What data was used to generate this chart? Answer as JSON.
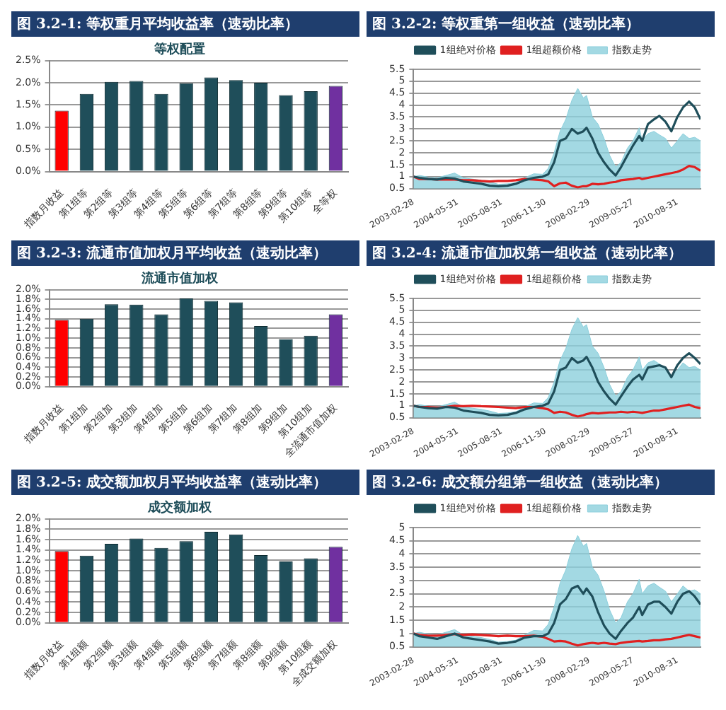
{
  "chart_data": [
    {
      "type": "bar",
      "title": "图 3.2-1: 等权重月平均收益率（速动比率）",
      "subtitle": "等权配置",
      "categories": [
        "指数月收益",
        "第1组等",
        "第2组等",
        "第3组等",
        "第4组等",
        "第5组等",
        "第6组等",
        "第7组等",
        "第8组等",
        "第9组等",
        "第10组等",
        "全等权"
      ],
      "values": [
        1.37,
        1.75,
        2.02,
        2.04,
        1.75,
        1.99,
        2.12,
        2.06,
        2.0,
        1.72,
        1.81,
        1.93
      ],
      "colors": [
        "#ff0000",
        "#1f4e5a",
        "#1f4e5a",
        "#1f4e5a",
        "#1f4e5a",
        "#1f4e5a",
        "#1f4e5a",
        "#1f4e5a",
        "#1f4e5a",
        "#1f4e5a",
        "#1f4e5a",
        "#7030a0"
      ],
      "ylim": [
        0,
        2.5
      ],
      "yticks": [
        {
          "value": 0,
          "label": "0.0%"
        },
        {
          "value": 0.5,
          "label": "0.5%"
        },
        {
          "value": 1,
          "label": "1.0%"
        },
        {
          "value": 1.5,
          "label": "1.5%"
        },
        {
          "value": 2,
          "label": "2.0%"
        },
        {
          "value": 2.5,
          "label": "2.5%"
        }
      ],
      "grid": "y",
      "legend": false
    },
    {
      "type": "line",
      "title": "图 3.2-2: 等权重第一组收益（速动比率）",
      "x": [
        "2003-02-28",
        "2003-04-30",
        "2003-07-31",
        "2003-10-31",
        "2004-01-30",
        "2004-04-30",
        "2004-07-30",
        "2004-10-29",
        "2005-01-31",
        "2005-04-29",
        "2005-07-29",
        "2005-10-31",
        "2006-01-26",
        "2006-04-28",
        "2006-07-31",
        "2006-10-31",
        "2006-12-29",
        "2007-02-28",
        "2007-04-30",
        "2007-06-29",
        "2007-08-31",
        "2007-10-31",
        "2007-12-28",
        "2008-01-31",
        "2008-03-31",
        "2008-05-30",
        "2008-07-31",
        "2008-09-26",
        "2008-11-28",
        "2009-01-23",
        "2009-03-31",
        "2009-05-27",
        "2009-07-31",
        "2009-08-31",
        "2009-10-30",
        "2009-12-31",
        "2010-02-26",
        "2010-04-30",
        "2010-06-30",
        "2010-08-31",
        "2010-10-29",
        "2010-12-31",
        "2011-02-28",
        "2011-04-29"
      ],
      "series": [
        {
          "name": "指数走势",
          "type": "area",
          "color": "#8ccfdc",
          "values": [
            1.0,
            1.05,
            0.98,
            0.95,
            1.05,
            1.15,
            0.95,
            0.9,
            0.85,
            0.78,
            0.68,
            0.7,
            0.75,
            0.95,
            1.12,
            1.1,
            1.35,
            2.0,
            2.9,
            3.4,
            4.2,
            4.7,
            4.3,
            4.4,
            3.5,
            3.2,
            2.6,
            1.9,
            1.4,
            1.6,
            2.2,
            2.5,
            3.05,
            2.5,
            2.8,
            2.9,
            2.75,
            2.6,
            2.2,
            2.5,
            2.8,
            2.6,
            2.65,
            2.5
          ]
        },
        {
          "name": "1组绝对价格",
          "type": "line",
          "color": "#1f4e5a",
          "values": [
            1.0,
            0.95,
            0.9,
            0.88,
            0.95,
            0.92,
            0.8,
            0.75,
            0.7,
            0.62,
            0.6,
            0.62,
            0.7,
            0.85,
            0.95,
            1.0,
            1.1,
            1.6,
            2.5,
            2.6,
            3.0,
            2.8,
            2.9,
            3.05,
            2.6,
            2.0,
            1.6,
            1.3,
            1.05,
            1.4,
            1.9,
            2.3,
            2.7,
            2.5,
            3.2,
            3.4,
            3.55,
            3.3,
            2.9,
            3.5,
            3.9,
            4.15,
            3.9,
            3.4
          ]
        },
        {
          "name": "1组超额价格",
          "type": "line",
          "color": "#e02020",
          "values": [
            1.0,
            0.9,
            0.9,
            0.88,
            0.88,
            0.88,
            0.85,
            0.85,
            0.82,
            0.8,
            0.82,
            0.82,
            0.85,
            0.9,
            0.88,
            0.85,
            0.8,
            0.6,
            0.72,
            0.75,
            0.62,
            0.55,
            0.6,
            0.6,
            0.7,
            0.68,
            0.7,
            0.75,
            0.78,
            0.85,
            0.88,
            0.9,
            0.95,
            0.9,
            0.95,
            1.0,
            1.05,
            1.1,
            1.15,
            1.2,
            1.3,
            1.45,
            1.4,
            1.25
          ]
        }
      ],
      "xlim": [
        "2003-02-28",
        "2011-04-29"
      ],
      "xticks": [
        "2003-02-28",
        "2004-05-31",
        "2005-08-31",
        "2006-11-30",
        "2008-02-29",
        "2009-05-27",
        "2010-08-31"
      ],
      "ylim": [
        0.5,
        5.5
      ],
      "yticks": [
        0.5,
        1,
        1.5,
        2,
        2.5,
        3,
        3.5,
        4,
        4.5,
        5,
        5.5
      ],
      "grid": "y",
      "legend": "top"
    },
    {
      "type": "bar",
      "title": "图 3.2-3: 流通市值加权月平均收益（速动比率）",
      "subtitle": "流通市值加权",
      "categories": [
        "指数月收益",
        "第1组加",
        "第2组加",
        "第3组加",
        "第4组加",
        "第5组加",
        "第6组加",
        "第7组加",
        "第8组加",
        "第9组加",
        "第10组加",
        "全流通市值加权"
      ],
      "values": [
        1.38,
        1.4,
        1.7,
        1.69,
        1.49,
        1.82,
        1.77,
        1.74,
        1.25,
        0.98,
        1.05,
        1.49
      ],
      "colors": [
        "#ff0000",
        "#1f4e5a",
        "#1f4e5a",
        "#1f4e5a",
        "#1f4e5a",
        "#1f4e5a",
        "#1f4e5a",
        "#1f4e5a",
        "#1f4e5a",
        "#1f4e5a",
        "#1f4e5a",
        "#7030a0"
      ],
      "ylim": [
        0,
        2.0
      ],
      "yticks": [
        {
          "value": 0,
          "label": "0.0%"
        },
        {
          "value": 0.2,
          "label": "0.2%"
        },
        {
          "value": 0.4,
          "label": "0.4%"
        },
        {
          "value": 0.6,
          "label": "0.6%"
        },
        {
          "value": 0.8,
          "label": "0.8%"
        },
        {
          "value": 1,
          "label": "1.0%"
        },
        {
          "value": 1.2,
          "label": "1.2%"
        },
        {
          "value": 1.4,
          "label": "1.4%"
        },
        {
          "value": 1.6,
          "label": "1.6%"
        },
        {
          "value": 1.8,
          "label": "1.8%"
        },
        {
          "value": 2,
          "label": "2.0%"
        }
      ],
      "grid": "y",
      "legend": false
    },
    {
      "type": "line",
      "title": "图 3.2-4: 流通市值加权第一组收益（速动比率）",
      "x": [
        "2003-02-28",
        "2003-04-30",
        "2003-07-31",
        "2003-10-31",
        "2004-01-30",
        "2004-04-30",
        "2004-07-30",
        "2004-10-29",
        "2005-01-31",
        "2005-04-29",
        "2005-07-29",
        "2005-10-31",
        "2006-01-26",
        "2006-04-28",
        "2006-07-31",
        "2006-10-31",
        "2006-12-29",
        "2007-02-28",
        "2007-04-30",
        "2007-06-29",
        "2007-08-31",
        "2007-10-31",
        "2007-12-28",
        "2008-01-31",
        "2008-03-31",
        "2008-05-30",
        "2008-07-31",
        "2008-09-26",
        "2008-11-28",
        "2009-01-23",
        "2009-03-31",
        "2009-05-27",
        "2009-07-31",
        "2009-08-31",
        "2009-10-30",
        "2009-12-31",
        "2010-02-26",
        "2010-04-30",
        "2010-06-30",
        "2010-08-31",
        "2010-10-29",
        "2010-12-31",
        "2011-02-28",
        "2011-04-29"
      ],
      "series": [
        {
          "name": "指数走势",
          "type": "area",
          "color": "#8ccfdc",
          "values": [
            1.0,
            1.05,
            0.98,
            0.95,
            1.05,
            1.15,
            0.95,
            0.9,
            0.85,
            0.78,
            0.68,
            0.7,
            0.75,
            0.95,
            1.12,
            1.1,
            1.35,
            2.0,
            2.9,
            3.4,
            4.2,
            4.7,
            4.3,
            4.4,
            3.5,
            3.2,
            2.6,
            1.9,
            1.4,
            1.6,
            2.2,
            2.5,
            3.05,
            2.5,
            2.8,
            2.9,
            2.75,
            2.6,
            2.2,
            2.5,
            2.8,
            2.6,
            2.65,
            2.5
          ]
        },
        {
          "name": "1组绝对价格",
          "type": "line",
          "color": "#1f4e5a",
          "values": [
            1.0,
            0.95,
            0.9,
            0.88,
            0.95,
            0.92,
            0.8,
            0.75,
            0.7,
            0.62,
            0.6,
            0.62,
            0.7,
            0.85,
            0.95,
            1.0,
            1.1,
            1.6,
            2.5,
            2.6,
            3.0,
            2.8,
            2.9,
            3.05,
            2.6,
            2.0,
            1.6,
            1.3,
            1.05,
            1.4,
            1.8,
            2.1,
            2.3,
            2.1,
            2.6,
            2.65,
            2.7,
            2.6,
            2.2,
            2.7,
            3.0,
            3.2,
            3.0,
            2.75
          ]
        },
        {
          "name": "1组超额价格",
          "type": "line",
          "color": "#e02020",
          "values": [
            1.0,
            0.95,
            0.95,
            0.92,
            0.95,
            1.0,
            0.98,
            1.0,
            0.98,
            0.97,
            0.95,
            0.92,
            0.9,
            0.95,
            0.95,
            0.9,
            0.85,
            0.7,
            0.75,
            0.72,
            0.62,
            0.55,
            0.6,
            0.65,
            0.7,
            0.68,
            0.7,
            0.72,
            0.72,
            0.75,
            0.72,
            0.75,
            0.72,
            0.7,
            0.75,
            0.8,
            0.8,
            0.85,
            0.9,
            0.95,
            1.0,
            1.05,
            0.95,
            0.9
          ]
        }
      ],
      "xlim": [
        "2003-02-28",
        "2011-04-29"
      ],
      "xticks": [
        "2003-02-28",
        "2004-05-31",
        "2005-08-31",
        "2006-11-30",
        "2008-02-29",
        "2009-05-27",
        "2010-08-31"
      ],
      "ylim": [
        0.5,
        5.5
      ],
      "yticks": [
        0.5,
        1,
        1.5,
        2,
        2.5,
        3,
        3.5,
        4,
        4.5,
        5,
        5.5
      ],
      "grid": "y",
      "legend": "top"
    },
    {
      "type": "bar",
      "title": "图 3.2-5: 成交额加权月平均收益率（速动比率）",
      "subtitle": "成交额加权",
      "categories": [
        "指数月收益",
        "第1组额",
        "第2组额",
        "第3组额",
        "第4组额",
        "第5组额",
        "第6组额",
        "第7组额",
        "第8组额",
        "第9组额",
        "第10组额",
        "全成交额加权"
      ],
      "values": [
        1.38,
        1.29,
        1.52,
        1.62,
        1.44,
        1.57,
        1.75,
        1.7,
        1.3,
        1.18,
        1.24,
        1.46
      ],
      "colors": [
        "#ff0000",
        "#1f4e5a",
        "#1f4e5a",
        "#1f4e5a",
        "#1f4e5a",
        "#1f4e5a",
        "#1f4e5a",
        "#1f4e5a",
        "#1f4e5a",
        "#1f4e5a",
        "#1f4e5a",
        "#7030a0"
      ],
      "ylim": [
        0,
        2.0
      ],
      "yticks": [
        {
          "value": 0,
          "label": "0.0%"
        },
        {
          "value": 0.2,
          "label": "0.2%"
        },
        {
          "value": 0.4,
          "label": "0.4%"
        },
        {
          "value": 0.6,
          "label": "0.6%"
        },
        {
          "value": 0.8,
          "label": "0.8%"
        },
        {
          "value": 1,
          "label": "1.0%"
        },
        {
          "value": 1.2,
          "label": "1.2%"
        },
        {
          "value": 1.4,
          "label": "1.4%"
        },
        {
          "value": 1.6,
          "label": "1.6%"
        },
        {
          "value": 1.8,
          "label": "1.8%"
        },
        {
          "value": 2,
          "label": "2.0%"
        }
      ],
      "grid": "y",
      "legend": false
    },
    {
      "type": "line",
      "title": "图 3.2-6: 成交额分组第一组收益（速动比率）",
      "x": [
        "2003-02-28",
        "2003-04-30",
        "2003-07-31",
        "2003-10-31",
        "2004-01-30",
        "2004-04-30",
        "2004-07-30",
        "2004-10-29",
        "2005-01-31",
        "2005-04-29",
        "2005-07-29",
        "2005-10-31",
        "2006-01-26",
        "2006-04-28",
        "2006-07-31",
        "2006-10-31",
        "2006-12-29",
        "2007-02-28",
        "2007-04-30",
        "2007-06-29",
        "2007-08-31",
        "2007-10-31",
        "2007-12-28",
        "2008-01-31",
        "2008-03-31",
        "2008-05-30",
        "2008-07-31",
        "2008-09-26",
        "2008-11-28",
        "2009-01-23",
        "2009-03-31",
        "2009-05-27",
        "2009-07-31",
        "2009-08-31",
        "2009-10-30",
        "2009-12-31",
        "2010-02-26",
        "2010-04-30",
        "2010-06-30",
        "2010-08-31",
        "2010-10-29",
        "2010-12-31",
        "2011-02-28",
        "2011-04-29"
      ],
      "series": [
        {
          "name": "指数走势",
          "type": "area",
          "color": "#8ccfdc",
          "values": [
            1.0,
            1.05,
            0.98,
            0.95,
            1.05,
            1.15,
            0.95,
            0.9,
            0.85,
            0.78,
            0.68,
            0.7,
            0.75,
            0.95,
            1.12,
            1.1,
            1.35,
            2.0,
            2.9,
            3.4,
            4.2,
            4.7,
            4.3,
            4.4,
            3.5,
            3.2,
            2.6,
            1.9,
            1.4,
            1.6,
            2.2,
            2.5,
            3.05,
            2.5,
            2.8,
            2.9,
            2.75,
            2.6,
            2.2,
            2.5,
            2.8,
            2.6,
            2.65,
            2.5
          ]
        },
        {
          "name": "1组绝对价格",
          "type": "line",
          "color": "#1f4e5a",
          "values": [
            1.0,
            0.9,
            0.85,
            0.8,
            0.9,
            1.0,
            0.85,
            0.8,
            0.75,
            0.7,
            0.62,
            0.65,
            0.7,
            0.85,
            0.9,
            0.9,
            1.0,
            1.4,
            2.1,
            2.3,
            2.7,
            2.8,
            2.5,
            2.7,
            2.4,
            1.8,
            1.3,
            1.0,
            0.8,
            1.1,
            1.4,
            1.6,
            2.0,
            1.7,
            2.1,
            2.2,
            2.2,
            2.0,
            1.75,
            2.2,
            2.5,
            2.6,
            2.4,
            2.1
          ]
        },
        {
          "name": "1组超额价格",
          "type": "line",
          "color": "#e02020",
          "values": [
            1.0,
            0.95,
            0.92,
            0.92,
            0.95,
            0.98,
            0.95,
            0.97,
            0.95,
            0.93,
            0.9,
            0.92,
            0.9,
            0.9,
            0.92,
            0.88,
            0.8,
            0.7,
            0.72,
            0.7,
            0.62,
            0.55,
            0.6,
            0.62,
            0.65,
            0.62,
            0.65,
            0.62,
            0.6,
            0.65,
            0.68,
            0.7,
            0.72,
            0.7,
            0.72,
            0.75,
            0.75,
            0.78,
            0.8,
            0.85,
            0.9,
            0.95,
            0.9,
            0.85
          ]
        }
      ],
      "xlim": [
        "2003-02-28",
        "2011-04-29"
      ],
      "xticks": [
        "2003-02-28",
        "2004-05-31",
        "2005-08-31",
        "2006-11-30",
        "2008-02-29",
        "2009-05-27",
        "2010-08-31"
      ],
      "ylim": [
        0.5,
        5
      ],
      "yticks": [
        0.5,
        1,
        1.5,
        2,
        2.5,
        3,
        3.5,
        4,
        4.5,
        5
      ],
      "grid": "y",
      "legend": "top"
    }
  ]
}
